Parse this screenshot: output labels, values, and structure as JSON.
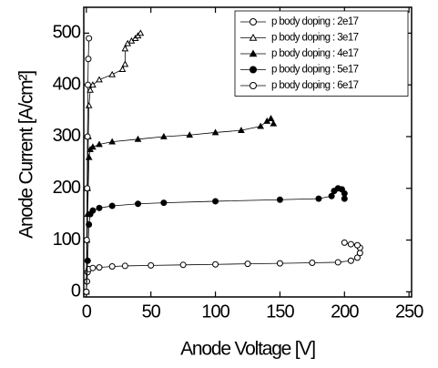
{
  "chart_data": {
    "type": "line",
    "xlabel": "Anode Voltage [V]",
    "ylabel": "Anode Current [A/cm²]",
    "xlim": [
      -2,
      252
    ],
    "ylim": [
      -10,
      550
    ],
    "xticks": [
      0,
      50,
      100,
      150,
      200,
      250
    ],
    "yticks": [
      0,
      100,
      200,
      300,
      400,
      500
    ],
    "legend": "upper right",
    "series": [
      {
        "name": "p body doping : 2e17",
        "color": "#000000",
        "marker": "circle",
        "filled": false,
        "x": [
          0,
          0.5,
          1,
          2,
          5,
          10,
          20,
          30,
          50,
          75,
          100,
          125,
          150,
          175,
          195,
          205,
          210,
          212,
          212,
          210,
          205,
          200
        ],
        "values": [
          0,
          20,
          38,
          44,
          46,
          47,
          49,
          50,
          51,
          52,
          53,
          54,
          55,
          56,
          57,
          60,
          66,
          75,
          85,
          90,
          92,
          95
        ]
      },
      {
        "name": "p body doping : 3e17",
        "color": "#000000",
        "marker": "triangle",
        "filled": false,
        "x": [
          0,
          0.5,
          1,
          1.5,
          2,
          3,
          5,
          10,
          20,
          28,
          30,
          30,
          32,
          35,
          38,
          40,
          42
        ],
        "values": [
          0,
          100,
          200,
          300,
          360,
          390,
          400,
          410,
          420,
          430,
          440,
          470,
          480,
          485,
          490,
          495,
          500
        ]
      },
      {
        "name": "p body doping : 4e17",
        "color": "#000000",
        "marker": "triangle",
        "filled": true,
        "x": [
          0,
          1,
          2,
          3,
          5,
          10,
          20,
          40,
          60,
          80,
          100,
          120,
          135,
          140,
          143,
          145
        ],
        "values": [
          0,
          150,
          260,
          275,
          280,
          285,
          290,
          295,
          300,
          303,
          308,
          312,
          320,
          330,
          335,
          325
        ]
      },
      {
        "name": "p body doping : 5e17",
        "color": "#000000",
        "marker": "circle",
        "filled": true,
        "x": [
          0,
          1,
          2,
          3,
          5,
          10,
          20,
          40,
          60,
          100,
          150,
          180,
          190,
          192,
          195,
          198,
          200,
          200
        ],
        "values": [
          0,
          60,
          130,
          150,
          157,
          162,
          166,
          170,
          172,
          175,
          178,
          180,
          185,
          195,
          200,
          198,
          190,
          180
        ]
      },
      {
        "name": "p body doping : 6e17",
        "color": "#000000",
        "marker": "circle",
        "filled": false,
        "x": [
          0,
          0.3,
          0.6,
          0.9,
          1.2,
          1.5,
          2
        ],
        "values": [
          0,
          100,
          200,
          300,
          400,
          450,
          490
        ]
      }
    ]
  }
}
